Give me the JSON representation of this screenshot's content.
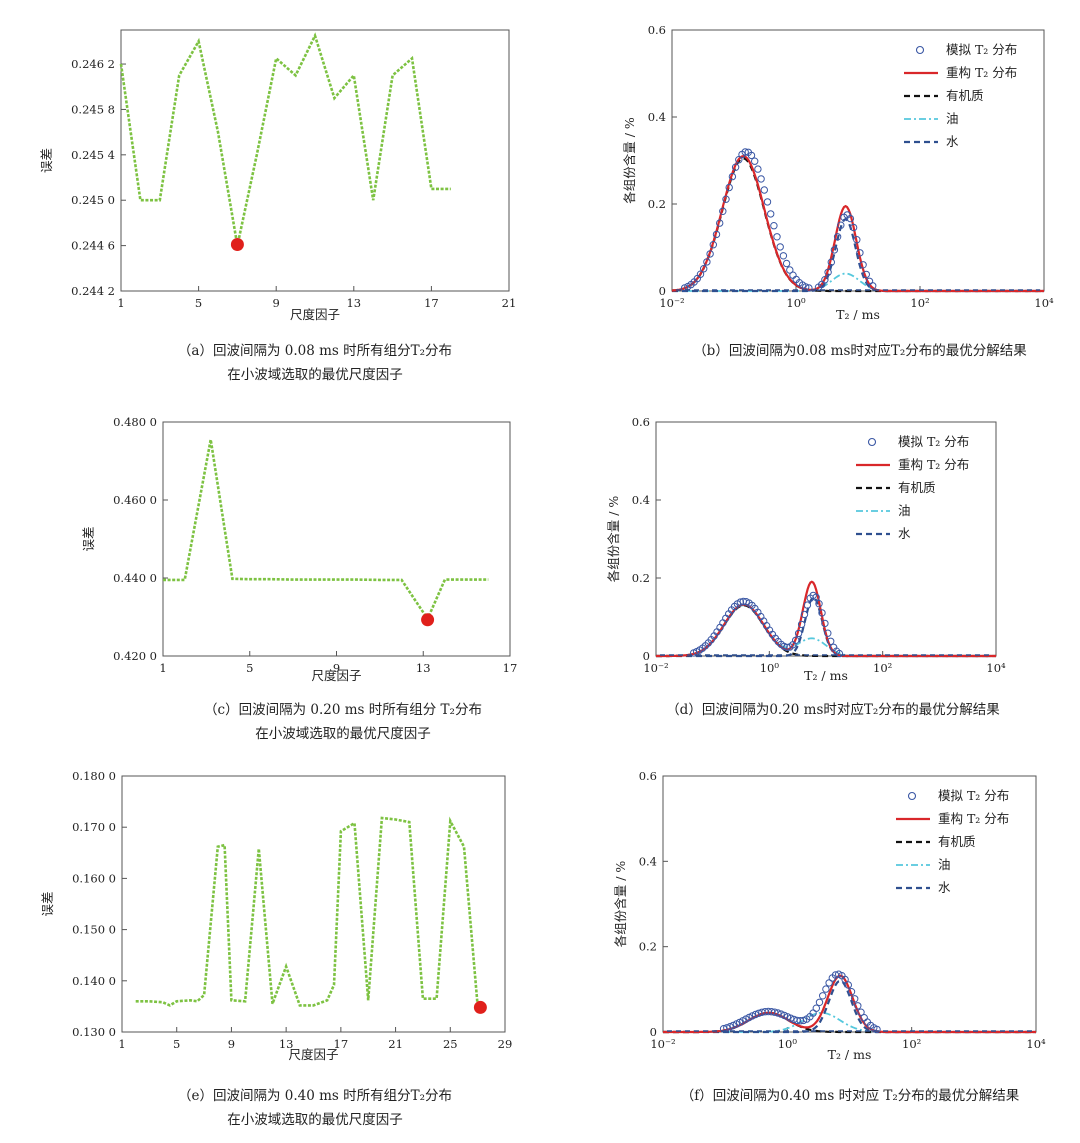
{
  "colors": {
    "error_line": "#7dc242",
    "optimal_marker": "#e0201b",
    "simulated": "#3a57a4",
    "reconstructed": "#d9272a",
    "organic": "#111111",
    "oil": "#55c8dd",
    "water": "#2e4f8f"
  },
  "chart_data": [
    {
      "id": "a",
      "type": "line",
      "xlabel": "尺度因子",
      "ylabel": "误差",
      "xticks": [
        "1",
        "5",
        "9",
        "13",
        "17",
        "21"
      ],
      "yticks": [
        "0.244 2",
        "0.244 6",
        "0.245 0",
        "0.245 4",
        "0.245 8",
        "0.246 2"
      ],
      "xlim": [
        1,
        21
      ],
      "ylim": [
        0.2442,
        0.2465
      ],
      "x": [
        1,
        2,
        3,
        4,
        5,
        6,
        7,
        8,
        9,
        10,
        11,
        12,
        13,
        14,
        15,
        16,
        17,
        18
      ],
      "y": [
        0.2462,
        0.245,
        0.245,
        0.2461,
        0.2464,
        0.2456,
        0.2446,
        0.2454,
        0.24625,
        0.2461,
        0.24645,
        0.2459,
        0.2461,
        0.245,
        0.2461,
        0.24625,
        0.2451,
        0.2451
      ],
      "optimal": {
        "x": 7,
        "y": 0.24461
      },
      "caption": [
        "（a）回波间隔为 0.08 ms 时所有组分T₂分布",
        "在小波域选取的最优尺度因子"
      ]
    },
    {
      "id": "b",
      "type": "line",
      "xlabel": "T₂ / ms",
      "ylabel": "各组份含量 / %",
      "xticks": [
        "10⁻²",
        "10⁰",
        "10²",
        "10⁴"
      ],
      "yticks": [
        "0",
        "0.2",
        "0.4",
        "0.6"
      ],
      "xlim_log10": [
        -2,
        4
      ],
      "ylim": [
        0,
        0.6
      ],
      "components": [
        {
          "key": "organic",
          "name": "有机质",
          "peaks": [
            {
              "mu": -0.85,
              "sigma": 0.34,
              "amp": 0.305
            }
          ]
        },
        {
          "key": "oil",
          "name": "油",
          "peaks": [
            {
              "mu": 0.8,
              "sigma": 0.22,
              "amp": 0.04
            }
          ]
        },
        {
          "key": "water",
          "name": "水",
          "peaks": [
            {
              "mu": 0.8,
              "sigma": 0.16,
              "amp": 0.165
            }
          ]
        },
        {
          "key": "reconstructed",
          "name": "重构 T₂ 分布",
          "peaks": [
            {
              "mu": -0.85,
              "sigma": 0.34,
              "amp": 0.31
            },
            {
              "mu": 0.8,
              "sigma": 0.17,
              "amp": 0.195
            }
          ]
        },
        {
          "key": "simulated",
          "name": "模拟 T₂ 分布",
          "peaks": [
            {
              "mu": -0.8,
              "sigma": 0.36,
              "amp": 0.32
            },
            {
              "mu": 0.82,
              "sigma": 0.18,
              "amp": 0.175
            }
          ]
        }
      ],
      "legend": [
        "模拟 T₂ 分布",
        "重构 T₂ 分布",
        "有机质",
        "油",
        "水"
      ],
      "caption": [
        "（b）回波间隔为0.08 ms时对应T₂分布的最优分解结果"
      ]
    },
    {
      "id": "c",
      "type": "line",
      "xlabel": "尺度因子",
      "ylabel": "误差",
      "xticks": [
        "1",
        "5",
        "9",
        "13",
        "17"
      ],
      "yticks": [
        "0.420 0",
        "0.440 0",
        "0.460 0",
        "0.480 0"
      ],
      "xlim": [
        1,
        17
      ],
      "ylim": [
        0.42,
        0.48
      ],
      "x": [
        1,
        2,
        3.2,
        4.2,
        5,
        6,
        7,
        8,
        9,
        10,
        11,
        12,
        13.2,
        14,
        15,
        16
      ],
      "y": [
        0.4395,
        0.4395,
        0.4755,
        0.4398,
        0.4397,
        0.4397,
        0.4396,
        0.4396,
        0.4396,
        0.4396,
        0.4395,
        0.4395,
        0.4295,
        0.4396,
        0.4396,
        0.4396
      ],
      "optimal": {
        "x": 13.2,
        "y": 0.4293
      },
      "caption": [
        "（c）回波间隔为 0.20 ms 时所有组分 T₂分布",
        "在小波域选取的最优尺度因子"
      ]
    },
    {
      "id": "d",
      "type": "line",
      "xlabel": "T₂ / ms",
      "ylabel": "各组份含量 / %",
      "xticks": [
        "10⁻²",
        "10⁰",
        "10²",
        "10⁴"
      ],
      "yticks": [
        "0",
        "0.2",
        "0.4",
        "0.6"
      ],
      "xlim_log10": [
        -2,
        4
      ],
      "ylim": [
        0,
        0.6
      ],
      "components": [
        {
          "key": "organic",
          "name": "有机质",
          "peaks": [
            {
              "mu": -0.45,
              "sigma": 0.35,
              "amp": 0.13
            }
          ]
        },
        {
          "key": "oil",
          "name": "油",
          "peaks": [
            {
              "mu": -0.45,
              "sigma": 0.35,
              "amp": 0.13
            },
            {
              "mu": 0.75,
              "sigma": 0.25,
              "amp": 0.045
            }
          ]
        },
        {
          "key": "water",
          "name": "水",
          "peaks": [
            {
              "mu": 0.78,
              "sigma": 0.15,
              "amp": 0.15
            }
          ]
        },
        {
          "key": "reconstructed",
          "name": "重构 T₂ 分布",
          "peaks": [
            {
              "mu": -0.45,
              "sigma": 0.35,
              "amp": 0.132
            },
            {
              "mu": 0.75,
              "sigma": 0.16,
              "amp": 0.19
            }
          ]
        },
        {
          "key": "simulated",
          "name": "模拟 T₂ 分布",
          "peaks": [
            {
              "mu": -0.45,
              "sigma": 0.37,
              "amp": 0.14
            },
            {
              "mu": 0.78,
              "sigma": 0.18,
              "amp": 0.155
            }
          ]
        }
      ],
      "legend": [
        "模拟 T₂ 分布",
        "重构 T₂ 分布",
        "有机质",
        "油",
        "水"
      ],
      "caption": [
        "（d）回波间隔为0.20 ms时对应T₂分布的最优分解结果"
      ]
    },
    {
      "id": "e",
      "type": "line",
      "xlabel": "尺度因子",
      "ylabel": "误差",
      "xticks": [
        "1",
        "5",
        "9",
        "13",
        "17",
        "21",
        "25",
        "29"
      ],
      "yticks": [
        "0.130 0",
        "0.140 0",
        "0.150 0",
        "0.160 0",
        "0.170 0",
        "0.180 0"
      ],
      "xlim": [
        1,
        29
      ],
      "ylim": [
        0.13,
        0.18
      ],
      "x": [
        2,
        3,
        4,
        4.5,
        5,
        6,
        6.5,
        7,
        8,
        8.5,
        9,
        10,
        11,
        12,
        13,
        14,
        15,
        16,
        16.5,
        17,
        18,
        19,
        20,
        21,
        22,
        23,
        24,
        25,
        26,
        27
      ],
      "y": [
        0.136,
        0.136,
        0.1358,
        0.1352,
        0.136,
        0.1362,
        0.136,
        0.1372,
        0.1662,
        0.1665,
        0.1362,
        0.136,
        0.1658,
        0.1355,
        0.1428,
        0.1352,
        0.1352,
        0.1362,
        0.1392,
        0.1692,
        0.1708,
        0.1362,
        0.1718,
        0.1715,
        0.171,
        0.1365,
        0.1365,
        0.1712,
        0.1662,
        0.1352
      ],
      "optimal": {
        "x": 27.2,
        "y": 0.1348
      },
      "caption": [
        "（e）回波间隔为 0.40 ms 时所有组分T₂分布",
        "在小波域选取的最优尺度因子"
      ]
    },
    {
      "id": "f",
      "type": "line",
      "xlabel": "T₂ / ms",
      "ylabel": "各组份含量 / %",
      "xticks": [
        "10⁻²",
        "10⁰",
        "10²",
        "10⁴"
      ],
      "yticks": [
        "0",
        "0.2",
        "0.4",
        "0.6"
      ],
      "xlim_log10": [
        -2,
        4
      ],
      "ylim": [
        0,
        0.6
      ],
      "components": [
        {
          "key": "organic",
          "name": "有机质",
          "peaks": [
            {
              "mu": -0.3,
              "sigma": 0.32,
              "amp": 0.045
            }
          ]
        },
        {
          "key": "oil",
          "name": "油",
          "peaks": [
            {
              "mu": 0.55,
              "sigma": 0.3,
              "amp": 0.045
            }
          ]
        },
        {
          "key": "water",
          "name": "水",
          "peaks": [
            {
              "mu": 0.85,
              "sigma": 0.18,
              "amp": 0.12
            }
          ]
        },
        {
          "key": "reconstructed",
          "name": "重构 T₂ 分布",
          "peaks": [
            {
              "mu": -0.3,
              "sigma": 0.32,
              "amp": 0.045
            },
            {
              "mu": 0.85,
              "sigma": 0.2,
              "amp": 0.132
            }
          ]
        },
        {
          "key": "simulated",
          "name": "模拟 T₂ 分布",
          "peaks": [
            {
              "mu": -0.3,
              "sigma": 0.38,
              "amp": 0.048
            },
            {
              "mu": 0.82,
              "sigma": 0.25,
              "amp": 0.135
            }
          ]
        }
      ],
      "legend": [
        "模拟 T₂ 分布",
        "重构 T₂ 分布",
        "有机质",
        "油",
        "水"
      ],
      "caption": [
        "（f）回波间隔为0.40 ms 时对应 T₂分布的最优分解结果"
      ]
    }
  ]
}
